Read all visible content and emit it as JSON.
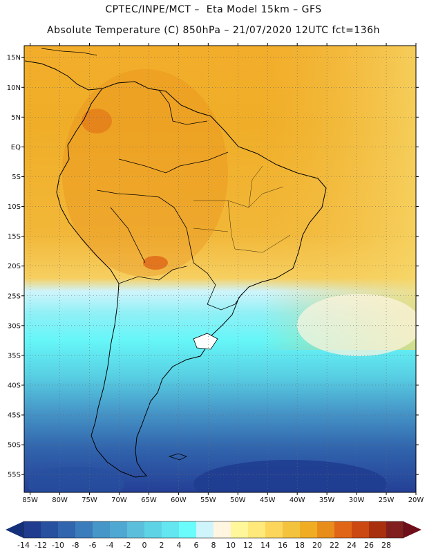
{
  "header": {
    "title_line1": "CPTEC/INPE/MCT –  Eta Model 15km – GFS",
    "title_line2": "Absolute Temperature (C) 850hPa – 21/07/2020 12UTC fct=136h"
  },
  "map": {
    "lat_labels": [
      "15N",
      "10N",
      "5N",
      "EQ",
      "5S",
      "10S",
      "15S",
      "20S",
      "25S",
      "30S",
      "35S",
      "40S",
      "45S",
      "50S",
      "55S"
    ],
    "lat_values": [
      15,
      10,
      5,
      0,
      -5,
      -10,
      -15,
      -20,
      -25,
      -30,
      -35,
      -40,
      -45,
      -50,
      -55
    ],
    "lon_labels": [
      "85W",
      "80W",
      "75W",
      "70W",
      "65W",
      "60W",
      "55W",
      "50W",
      "45W",
      "40W",
      "35W",
      "30W",
      "25W",
      "20W"
    ],
    "lon_values": [
      -85,
      -80,
      -75,
      -70,
      -65,
      -60,
      -55,
      -50,
      -45,
      -40,
      -35,
      -30,
      -25,
      -20
    ],
    "lon_range": [
      -86,
      -20
    ],
    "lat_range": [
      -58,
      17
    ]
  },
  "colorbar": {
    "labels": [
      "-14",
      "-12",
      "-10",
      "-8",
      "-6",
      "-4",
      "-2",
      "0",
      "2",
      "4",
      "6",
      "8",
      "10",
      "12",
      "14",
      "16",
      "18",
      "20",
      "22",
      "24",
      "26",
      "28"
    ],
    "colors": [
      "#1f3c8f",
      "#27509f",
      "#3165ad",
      "#3b7cbc",
      "#4696c8",
      "#4fa8d2",
      "#5bbfdc",
      "#5fd3e6",
      "#63e6ef",
      "#6afbfb",
      "#cff4fb",
      "#fff5e0",
      "#fff79a",
      "#ffe97a",
      "#fbd65a",
      "#f4c33e",
      "#f0ad24",
      "#e88c1a",
      "#e06516",
      "#cc4812",
      "#a8300f",
      "#801f1e"
    ],
    "left_arrow_color": "#15307a",
    "right_arrow_color": "#6e0f1a"
  }
}
